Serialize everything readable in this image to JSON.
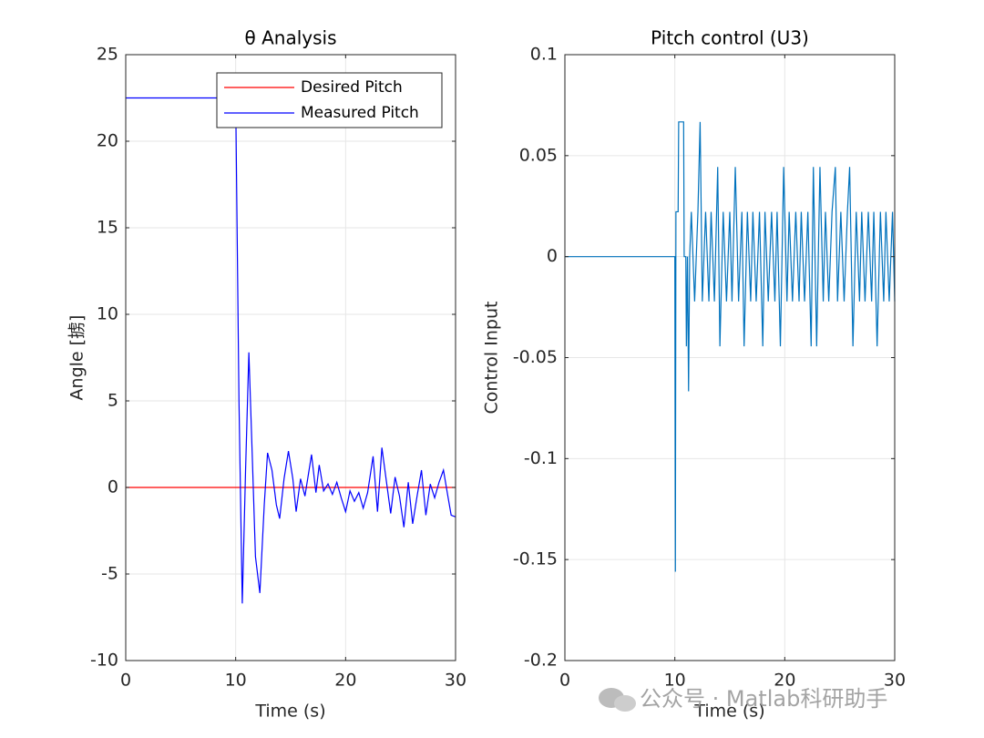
{
  "chart_data": [
    {
      "type": "line",
      "title": "θ Analysis",
      "xlabel": "Time (s)",
      "ylabel": "Angle [掳]",
      "xlim": [
        0,
        30
      ],
      "xticks": [
        0,
        10,
        20,
        30
      ],
      "ylim": [
        -10,
        25
      ],
      "yticks": [
        -10,
        -5,
        0,
        5,
        10,
        15,
        20,
        25
      ],
      "grid": true,
      "legend": "northeast",
      "series": [
        {
          "name": "Desired Pitch",
          "color": "#ff0000",
          "x": [
            0,
            30
          ],
          "values": [
            0,
            0
          ]
        },
        {
          "name": "Measured Pitch",
          "color": "#0000ff",
          "x": [
            0,
            10,
            10.3,
            10.6,
            10.9,
            11.2,
            11.5,
            11.8,
            12.2,
            12.6,
            12.9,
            13.3,
            13.7,
            14.0,
            14.4,
            14.8,
            15.2,
            15.5,
            15.9,
            16.3,
            16.9,
            17.3,
            17.6,
            18,
            18.4,
            18.8,
            19.2,
            19.6,
            20,
            20.4,
            20.8,
            21.2,
            21.6,
            22,
            22.5,
            22.9,
            23.3,
            23.7,
            24.1,
            24.5,
            24.9,
            25.3,
            25.7,
            26.1,
            26.5,
            26.9,
            27.3,
            27.7,
            28.1,
            28.5,
            28.9,
            29.3,
            29.6,
            30
          ],
          "values": [
            22.5,
            22.5,
            5,
            -6.7,
            1,
            7.8,
            2,
            -4,
            -6.1,
            -1,
            2.0,
            1,
            -1,
            -1.8,
            0.5,
            2.1,
            0.5,
            -1.4,
            0.5,
            -0.5,
            1.9,
            -0.3,
            1.3,
            -0.2,
            0.2,
            -0.4,
            0.3,
            -0.6,
            -1.4,
            -0.2,
            -0.8,
            -0.3,
            -1.2,
            -0.3,
            1.8,
            -1.4,
            2.3,
            0.4,
            -1.5,
            0.6,
            -0.5,
            -2.3,
            0.3,
            -2.1,
            -0.5,
            1.0,
            -1.6,
            0.2,
            -0.6,
            0.3,
            1.0,
            -0.5,
            -1.6,
            -1.7
          ]
        }
      ]
    },
    {
      "type": "line",
      "title": "Pitch control (U3)",
      "xlabel": "Time (s)",
      "ylabel": "Control Input",
      "xlim": [
        0,
        30
      ],
      "xticks": [
        0,
        10,
        20,
        30
      ],
      "ylim": [
        -0.2,
        0.1
      ],
      "yticks": [
        -0.2,
        -0.15,
        -0.1,
        -0.05,
        0,
        0.05,
        0.1
      ],
      "grid": true,
      "series": [
        {
          "color": "#0072bd",
          "x": [
            0,
            10,
            10.05,
            10.1,
            10.3,
            10.35,
            10.8,
            10.85,
            11.0,
            11.05,
            11.15,
            11.25,
            11.35,
            11.5,
            11.8,
            12.1,
            12.3,
            12.5,
            12.8,
            13.1,
            13.3,
            13.6,
            13.9,
            14.1,
            14.4,
            14.7,
            15.0,
            15.2,
            15.5,
            15.8,
            16.1,
            16.3,
            16.6,
            16.9,
            17.1,
            17.4,
            17.7,
            18.0,
            18.2,
            18.5,
            18.8,
            19.1,
            19.3,
            19.6,
            19.9,
            20.2,
            20.4,
            20.7,
            21.0,
            21.3,
            21.5,
            21.8,
            22.1,
            22.4,
            22.6,
            22.9,
            23.2,
            23.5,
            23.7,
            24.0,
            24.3,
            24.6,
            24.8,
            25.1,
            25.4,
            25.7,
            25.9,
            26.2,
            26.5,
            26.8,
            27.0,
            27.3,
            27.6,
            27.9,
            28.1,
            28.4,
            28.7,
            29.0,
            29.2,
            29.5,
            29.8,
            30.0
          ],
          "values": [
            0,
            0,
            -0.156,
            0.0222,
            0.0222,
            0.0667,
            0.0667,
            0,
            0,
            -0.0444,
            0,
            -0.0667,
            0,
            0.0222,
            -0.0222,
            0.0222,
            0.0667,
            -0.0222,
            0.0222,
            -0.0222,
            0.0222,
            -0.0222,
            0.0444,
            -0.0444,
            0.0222,
            -0.0222,
            0.0222,
            -0.0222,
            0.0444,
            -0.0222,
            0.0222,
            -0.0444,
            0.0222,
            -0.0222,
            0.0222,
            -0.0222,
            0.0222,
            -0.0444,
            0.0222,
            -0.0222,
            0.0222,
            -0.0222,
            0.0222,
            -0.0444,
            0.0444,
            -0.0222,
            0.0222,
            -0.0222,
            0.0222,
            -0.0222,
            0.0222,
            -0.0222,
            0.0222,
            -0.0444,
            0.0444,
            -0.0444,
            0.0444,
            -0.0222,
            0.0222,
            -0.0222,
            0.0222,
            0.0444,
            -0.0222,
            0.0222,
            -0.0222,
            0.0222,
            0.0444,
            -0.0444,
            0.0222,
            -0.0222,
            0.0222,
            -0.0222,
            0.0222,
            -0.0222,
            0.0222,
            -0.0444,
            0.0222,
            -0.0222,
            0.0222,
            -0.0222,
            0.0222,
            -0.0222
          ]
        }
      ]
    }
  ],
  "watermark": "公众号 · Matlab科研助手"
}
